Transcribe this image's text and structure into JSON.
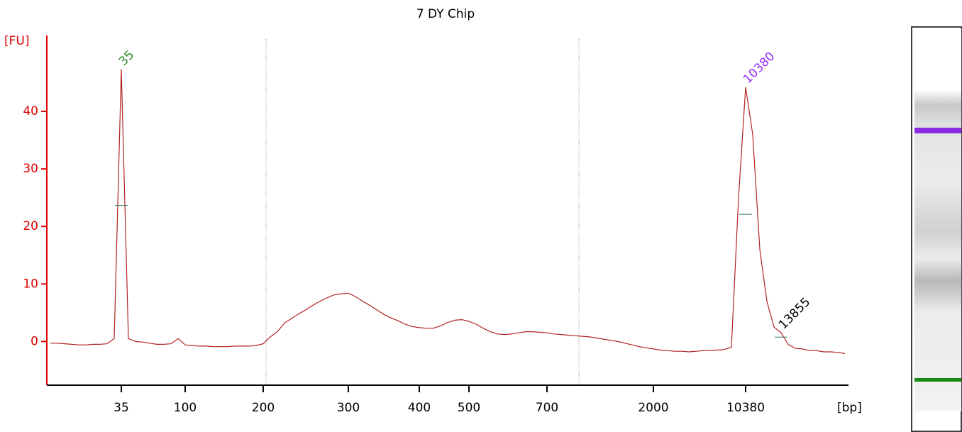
{
  "chart_data": {
    "type": "line",
    "title": "7 DY Chip",
    "y_label": "[FU]",
    "x_label": "[bp]",
    "categories": [
      null,
      null,
      null,
      null,
      null,
      null,
      null,
      null,
      null,
      null,
      "35",
      null,
      null,
      null,
      null,
      null,
      null,
      null,
      null,
      "100",
      null,
      null,
      null,
      null,
      null,
      null,
      null,
      null,
      null,
      null,
      "200",
      null,
      null,
      null,
      null,
      null,
      null,
      null,
      null,
      null,
      null,
      null,
      "300",
      null,
      null,
      null,
      null,
      null,
      null,
      null,
      null,
      null,
      "400",
      null,
      null,
      null,
      null,
      null,
      null,
      "500",
      null,
      null,
      null,
      null,
      null,
      null,
      null,
      null,
      null,
      null,
      "700",
      null,
      null,
      null,
      null,
      null,
      null,
      null,
      null,
      null,
      null,
      null,
      null,
      null,
      null,
      "2000",
      null,
      null,
      null,
      null,
      null,
      null,
      null,
      null,
      null,
      null,
      null,
      null,
      "10380",
      null,
      null,
      null,
      null,
      null,
      null,
      null,
      null,
      null,
      null,
      null,
      null,
      null,
      null
    ],
    "series": [
      {
        "color": "#b22222",
        "values": [
          -0.3,
          -0.3,
          -0.4,
          -0.5,
          -0.6,
          -0.6,
          -0.5,
          -0.5,
          -0.4,
          0.5,
          47.3,
          0.5,
          0,
          -0.1,
          -0.3,
          -0.5,
          -0.5,
          -0.4,
          0.5,
          -0.6,
          -0.7,
          -0.8,
          -0.8,
          -0.9,
          -0.9,
          -0.9,
          -0.8,
          -0.8,
          -0.8,
          -0.7,
          -0.4,
          0.8,
          1.7,
          3.2,
          4.0,
          4.8,
          5.5,
          6.3,
          7.0,
          7.6,
          8.1,
          8.3,
          8.4,
          7.8,
          7.0,
          6.3,
          5.5,
          4.7,
          4.1,
          3.6,
          3.0,
          2.6,
          2.4,
          2.3,
          2.3,
          2.7,
          3.3,
          3.7,
          3.8,
          3.5,
          3.0,
          2.3,
          1.7,
          1.3,
          1.2,
          1.3,
          1.5,
          1.7,
          1.7,
          1.6,
          1.5,
          1.3,
          1.2,
          1.1,
          1.0,
          0.9,
          0.8,
          0.6,
          0.4,
          0.2,
          0.0,
          -0.3,
          -0.6,
          -0.9,
          -1.1,
          -1.3,
          -1.5,
          -1.6,
          -1.7,
          -1.7,
          -1.8,
          -1.7,
          -1.6,
          -1.6,
          -1.5,
          -1.4,
          -1.0,
          25,
          44.2,
          36,
          16,
          7,
          2.5,
          1.5,
          -0.5,
          -1.2,
          -1.3,
          -1.6,
          -1.6,
          -1.8,
          -1.8,
          -1.9,
          -2.1
        ]
      }
    ],
    "peaks": [
      {
        "label": "35",
        "index": 10,
        "color": "#2e8b22"
      },
      {
        "label": "10380",
        "index": 98,
        "color": "#9b30ff"
      },
      {
        "label": "13855",
        "index": 103,
        "color": "#000000"
      }
    ],
    "ylim": [
      -7.6,
      53.2
    ],
    "yticks": [
      0,
      10,
      20,
      30,
      40
    ],
    "axis_color": "#e00000"
  }
}
